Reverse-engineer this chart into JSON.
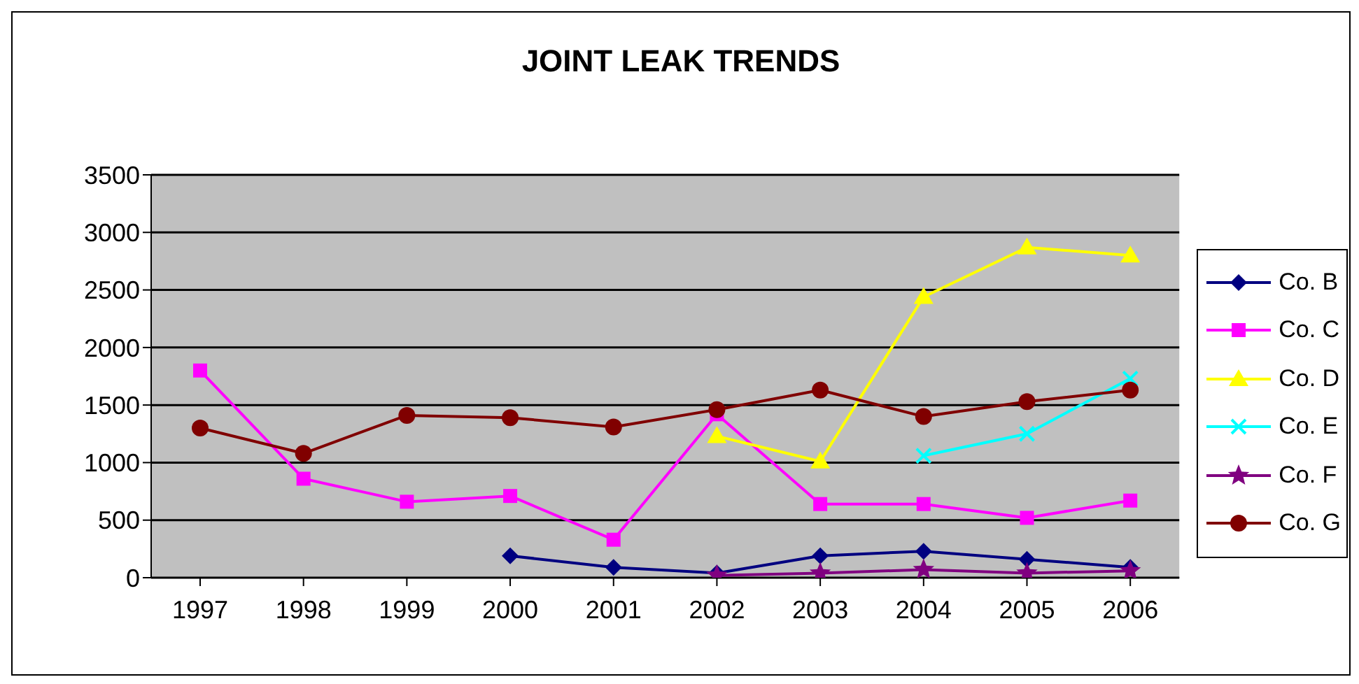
{
  "chart_data": {
    "type": "line",
    "title": "JOINT LEAK TRENDS",
    "categories": [
      "1997",
      "1998",
      "1999",
      "2000",
      "2001",
      "2002",
      "2003",
      "2004",
      "2005",
      "2006"
    ],
    "series": [
      {
        "name": "Co. B",
        "color": "#000080",
        "marker": "diamond",
        "values": [
          null,
          null,
          null,
          190,
          90,
          40,
          190,
          230,
          160,
          90
        ]
      },
      {
        "name": "Co. C",
        "color": "#ff00ff",
        "marker": "square",
        "values": [
          1800,
          860,
          660,
          710,
          330,
          1420,
          640,
          640,
          520,
          670
        ]
      },
      {
        "name": "Co. D",
        "color": "#ffff00",
        "marker": "triangle",
        "values": [
          null,
          null,
          null,
          null,
          null,
          1230,
          1010,
          2440,
          2870,
          2800
        ]
      },
      {
        "name": "Co. E",
        "color": "#00ffff",
        "marker": "cross",
        "values": [
          null,
          null,
          null,
          null,
          null,
          null,
          null,
          1060,
          1250,
          1730
        ]
      },
      {
        "name": "Co. F",
        "color": "#800080",
        "marker": "star",
        "values": [
          null,
          null,
          null,
          null,
          null,
          20,
          40,
          70,
          40,
          60
        ]
      },
      {
        "name": "Co. G",
        "color": "#800000",
        "marker": "circle",
        "values": [
          1300,
          1080,
          1410,
          1390,
          1310,
          1460,
          1630,
          1400,
          1530,
          1630
        ]
      }
    ],
    "ylim": [
      0,
      3500
    ],
    "yticks": [
      0,
      500,
      1000,
      1500,
      2000,
      2500,
      3000,
      3500
    ],
    "grid": "y",
    "legend": "right"
  }
}
